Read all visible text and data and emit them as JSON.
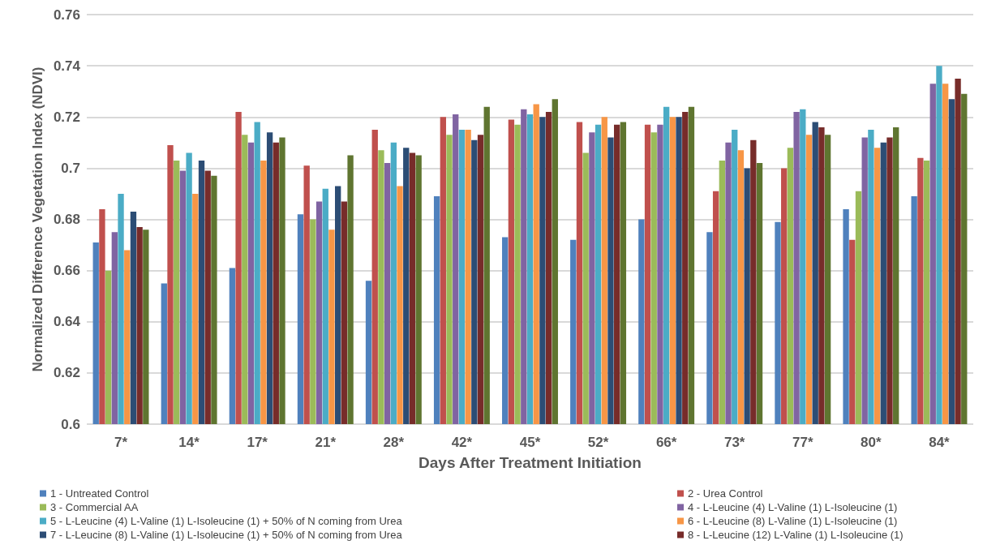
{
  "chart_data": {
    "type": "bar",
    "xlabel": "Days After Treatment Initiation",
    "ylabel": "Normalized Difference Vegetation Index (NDVI)",
    "categories": [
      "7*",
      "14*",
      "17*",
      "21*",
      "28*",
      "42*",
      "45*",
      "52*",
      "66*",
      "73*",
      "77*",
      "80*",
      "84*"
    ],
    "series": [
      {
        "name": "1 - Untreated Control",
        "color": "#4f81bd",
        "values": [
          0.671,
          0.655,
          0.661,
          0.682,
          0.656,
          0.689,
          0.673,
          0.672,
          0.68,
          0.675,
          0.679,
          0.684,
          0.689
        ]
      },
      {
        "name": "2 - Urea Control",
        "color": "#c0504d",
        "values": [
          0.684,
          0.709,
          0.722,
          0.701,
          0.715,
          0.72,
          0.719,
          0.718,
          0.717,
          0.691,
          0.7,
          0.672,
          0.704
        ]
      },
      {
        "name": "3 - Commercial AA",
        "color": "#9bbb59",
        "values": [
          0.66,
          0.703,
          0.713,
          0.68,
          0.707,
          0.713,
          0.717,
          0.706,
          0.714,
          0.703,
          0.708,
          0.691,
          0.703
        ]
      },
      {
        "name": "4 - L-Leucine (4) L-Valine (1) L-Isoleucine (1)",
        "color": "#8064a2",
        "values": [
          0.675,
          0.699,
          0.71,
          0.687,
          0.702,
          0.721,
          0.723,
          0.714,
          0.717,
          0.71,
          0.722,
          0.712,
          0.733
        ]
      },
      {
        "name": "5 - L-Leucine (4) L-Valine (1) L-Isoleucine (1) + 50% of N coming from Urea",
        "color": "#4bacc6",
        "values": [
          0.69,
          0.706,
          0.718,
          0.692,
          0.71,
          0.715,
          0.721,
          0.717,
          0.724,
          0.715,
          0.723,
          0.715,
          0.74
        ]
      },
      {
        "name": "6 - L-Leucine (8) L-Valine (1) L-Isoleucine (1)",
        "color": "#f79646",
        "values": [
          0.668,
          0.69,
          0.703,
          0.676,
          0.693,
          0.715,
          0.725,
          0.72,
          0.72,
          0.707,
          0.713,
          0.708,
          0.733
        ]
      },
      {
        "name": "7 - L-Leucine (8) L-Valine (1) L-Isoleucine (1) + 50% of N coming from Urea",
        "color": "#2c4d75",
        "values": [
          0.683,
          0.703,
          0.714,
          0.693,
          0.708,
          0.711,
          0.72,
          0.712,
          0.72,
          0.7,
          0.718,
          0.71,
          0.727
        ]
      },
      {
        "name": "8 - L-Leucine (12) L-Valine (1) L-Isoleucine (1)",
        "color": "#772c2a",
        "values": [
          0.677,
          0.699,
          0.71,
          0.687,
          0.706,
          0.713,
          0.722,
          0.717,
          0.722,
          0.711,
          0.716,
          0.712,
          0.735
        ]
      },
      {
        "color": "#5f7530",
        "values": [
          0.676,
          0.697,
          0.712,
          0.705,
          0.705,
          0.724,
          0.727,
          0.718,
          0.724,
          0.702,
          0.713,
          0.716,
          0.729
        ]
      }
    ],
    "ylim": [
      0.6,
      0.76
    ],
    "yticks": [
      0.6,
      0.62,
      0.64,
      0.66,
      0.68,
      0.7,
      0.72,
      0.74,
      0.76
    ],
    "grid": "y",
    "legend": "bottom"
  }
}
